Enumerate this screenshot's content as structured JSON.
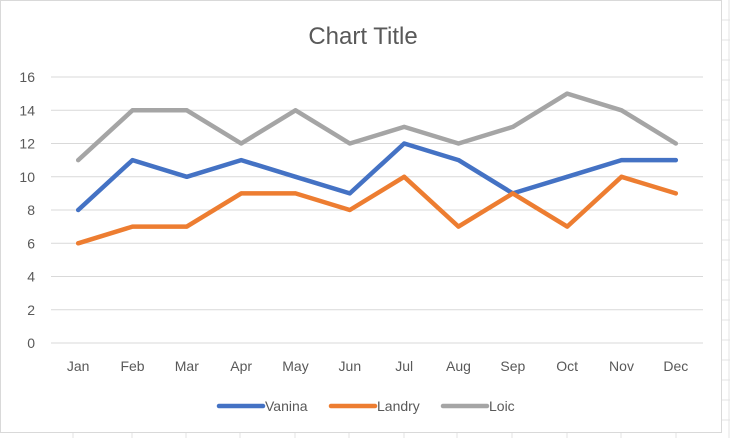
{
  "chart_data": {
    "type": "line",
    "title": "Chart Title",
    "xlabel": "",
    "ylabel": "",
    "categories": [
      "Jan",
      "Feb",
      "Mar",
      "Apr",
      "May",
      "Jun",
      "Jul",
      "Aug",
      "Sep",
      "Oct",
      "Nov",
      "Dec"
    ],
    "ylim": [
      0,
      16
    ],
    "yticks": [
      "0",
      "2",
      "4",
      "6",
      "8",
      "10",
      "12",
      "14",
      "16"
    ],
    "grid": true,
    "legend_position": "bottom",
    "series": [
      {
        "name": "Vanina",
        "color": "#4472c4",
        "values": [
          8,
          11,
          10,
          11,
          10,
          9,
          12,
          11,
          9,
          10,
          11,
          11
        ]
      },
      {
        "name": "Landry",
        "color": "#ed7d31",
        "values": [
          6,
          7,
          7,
          9,
          9,
          8,
          10,
          7,
          9,
          7,
          10,
          9
        ]
      },
      {
        "name": "Loic",
        "color": "#a5a5a5",
        "values": [
          11,
          14,
          14,
          12,
          14,
          12,
          13,
          12,
          13,
          15,
          14,
          12
        ]
      }
    ]
  }
}
